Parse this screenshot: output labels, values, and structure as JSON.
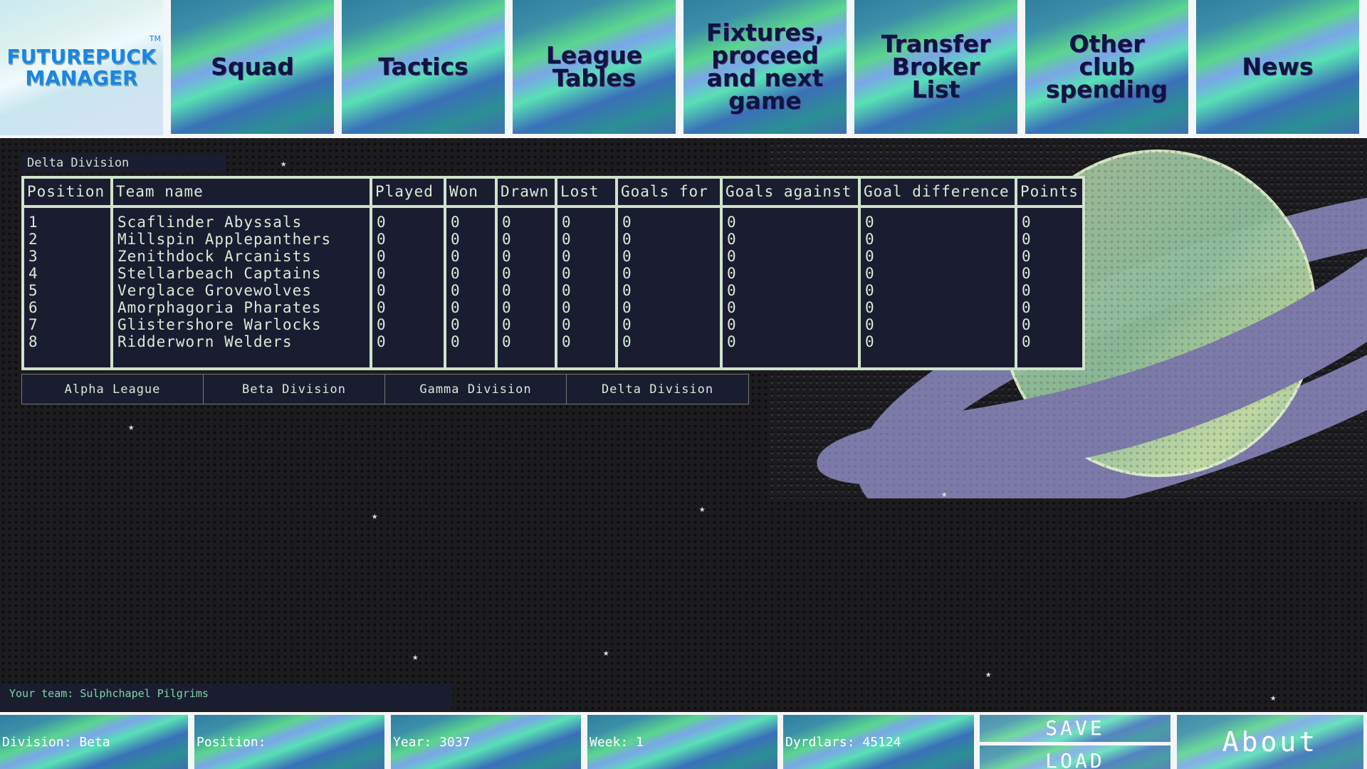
{
  "nav": {
    "logo": {
      "line1": "FUTUREPUCK",
      "line2": "MANAGER",
      "tm": "TM"
    },
    "items": [
      {
        "label": "Squad"
      },
      {
        "label": "Tactics"
      },
      {
        "label": "League Tables"
      },
      {
        "label": "Fixtures, proceed and next game"
      },
      {
        "label": "Transfer Broker List"
      },
      {
        "label": "Other club spending"
      },
      {
        "label": "News"
      }
    ]
  },
  "division_title": "Delta Division",
  "table": {
    "headers": [
      "Position",
      "Team name",
      "Played",
      "Won",
      "Drawn",
      "Lost",
      "Goals for",
      "Goals against",
      "Goal difference",
      "Points"
    ],
    "positions": "1\n2\n3\n4\n5\n6\n7\n8",
    "teams": "Scaflinder Abyssals\nMillspin Applepanthers\nZenithdock Arcanists\nStellarbeach Captains\nVerglace Grovewolves\nAmorphagoria Pharates\nGlistershore Warlocks\nRidderworn Welders",
    "played": "0\n0\n0\n0\n0\n0\n0\n0",
    "won": "0\n0\n0\n0\n0\n0\n0\n0",
    "drawn": "0\n0\n0\n0\n0\n0\n0\n0",
    "lost": "0\n0\n0\n0\n0\n0\n0\n0",
    "goals_for": "0\n0\n0\n0\n0\n0\n0\n0",
    "goals_against": "0\n0\n0\n0\n0\n0\n0\n0",
    "goal_difference": "0\n0\n0\n0\n0\n0\n0\n0",
    "points": "0\n0\n0\n0\n0\n0\n0\n0"
  },
  "division_buttons": [
    "Alpha League",
    "Beta Division",
    "Gamma Division",
    "Delta Division"
  ],
  "your_team": "Your team: Sulphchapel Pilgrims",
  "status": {
    "division": "Division: Beta",
    "position": "Position:",
    "year": "Year: 3037",
    "week": "Week: 1",
    "money": "Dyrdlars: 45124"
  },
  "buttons": {
    "save": "SAVE",
    "load": "LOAD",
    "about": "About"
  },
  "colors": {
    "panel": "#1a1d30",
    "border": "#cfe3cc",
    "planet": "#b8d49a",
    "ring": "#7c7aa8"
  }
}
